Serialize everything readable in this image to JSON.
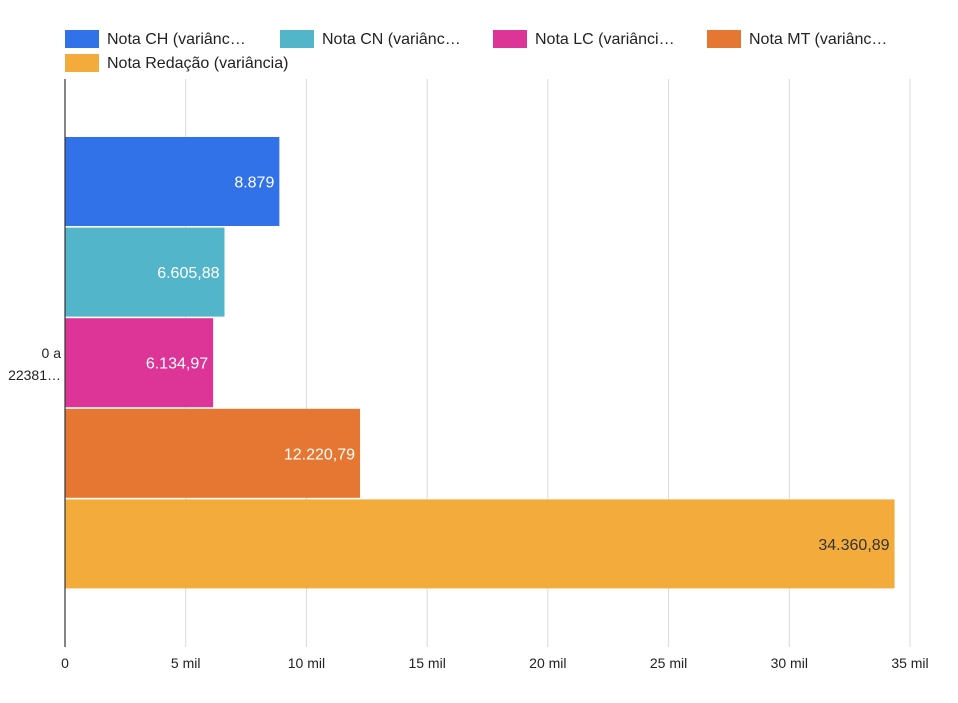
{
  "chart_data": {
    "type": "bar",
    "orientation": "horizontal",
    "categories": [
      "0 a 22381…"
    ],
    "category_label_lines": [
      "0 a",
      "22381…"
    ],
    "series": [
      {
        "name": "Nota CH (variânc…",
        "values": [
          8879.0
        ],
        "value_label": "8.879",
        "color": "#3272e8",
        "label_color": "#ffffff"
      },
      {
        "name": "Nota CN (variânc…",
        "values": [
          6605.88
        ],
        "value_label": "6.605,88",
        "color": "#52b5c9",
        "label_color": "#ffffff"
      },
      {
        "name": "Nota LC (variânci…",
        "values": [
          6134.97
        ],
        "value_label": "6.134,97",
        "color": "#dc3597",
        "label_color": "#ffffff"
      },
      {
        "name": "Nota MT (variânc…",
        "values": [
          12220.79
        ],
        "value_label": "12.220,79",
        "color": "#e67733",
        "label_color": "#ffffff"
      },
      {
        "name": "Nota Redação (variância)",
        "values": [
          34360.89
        ],
        "value_label": "34.360,89",
        "color": "#f3ac3c",
        "label_color": "#333333"
      }
    ],
    "x_ticks": [
      0,
      5000,
      10000,
      15000,
      20000,
      25000,
      30000,
      35000
    ],
    "x_tick_labels": [
      "0",
      "5 mil",
      "10 mil",
      "15 mil",
      "20 mil",
      "25 mil",
      "30 mil",
      "35 mil"
    ],
    "xlim": [
      0,
      35000
    ],
    "grid": true,
    "legend_position": "top"
  }
}
